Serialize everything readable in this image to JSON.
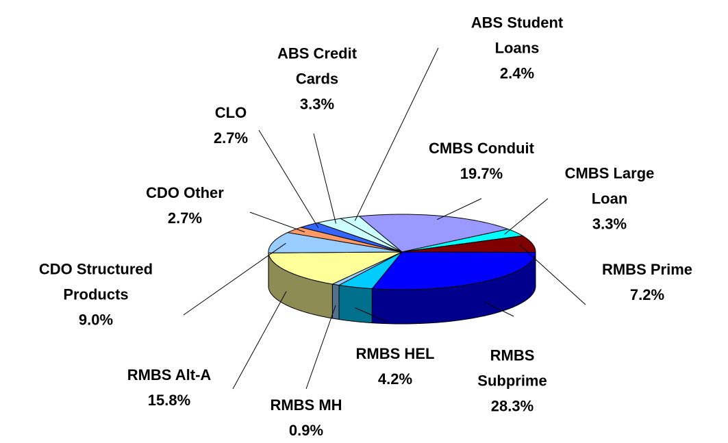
{
  "chart_data": {
    "type": "pie3d",
    "categories": [
      "CMBS Conduit",
      "CMBS Large Loan",
      "RMBS Prime",
      "RMBS Subprime",
      "RMBS HEL",
      "RMBS MH",
      "RMBS Alt-A",
      "CDO Structured Products",
      "CDO Other",
      "CLO",
      "ABS Credit Cards",
      "ABS Student Loans"
    ],
    "values": [
      19.7,
      3.3,
      7.2,
      28.3,
      4.2,
      0.9,
      15.8,
      9.0,
      2.7,
      2.7,
      3.3,
      2.4
    ],
    "value_labels": [
      "19.7%",
      "3.3%",
      "7.2%",
      "28.3%",
      "4.2%",
      "0.9%",
      "15.8%",
      "9.0%",
      "2.7%",
      "2.7%",
      "3.3%",
      "2.4%"
    ],
    "colors": [
      "#9999ff",
      "#00ffff",
      "#800000",
      "#0000ff",
      "#00ccff",
      "#99ccff",
      "#ffff99",
      "#99ccff",
      "#ff9966",
      "#3366ff",
      "#ccffff",
      "#ccffff"
    ]
  }
}
